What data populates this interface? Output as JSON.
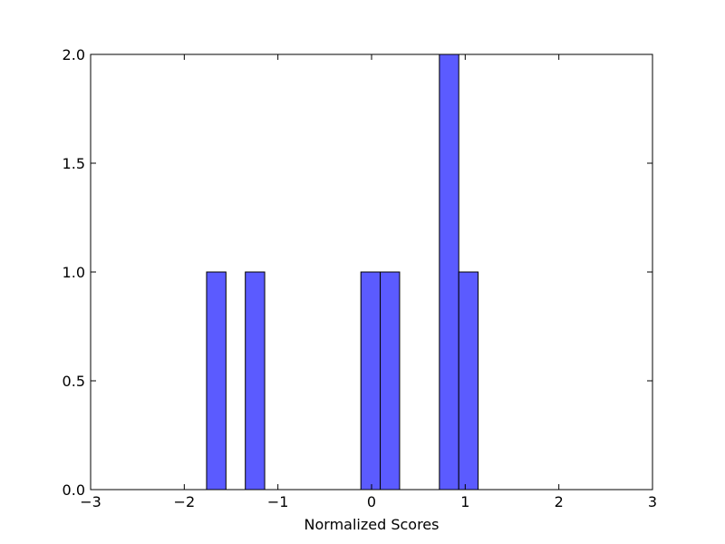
{
  "chart_data": {
    "type": "bar",
    "subtype": "histogram",
    "title": "",
    "xlabel": "Normalized Scores",
    "ylabel": "",
    "xlim": [
      -3,
      3
    ],
    "ylim": [
      0,
      2
    ],
    "bin_width": 0.2068,
    "bins": [
      {
        "x0": -1.7617,
        "x1": -1.5549,
        "count": 1
      },
      {
        "x0": -1.3481,
        "x1": -1.1413,
        "count": 1
      },
      {
        "x0": -0.1141,
        "x1": 0.0927,
        "count": 1
      },
      {
        "x0": 0.0927,
        "x1": 0.2995,
        "count": 1
      },
      {
        "x0": 0.7244,
        "x1": 0.9312,
        "count": 2
      },
      {
        "x0": 0.9312,
        "x1": 1.138,
        "count": 1
      }
    ],
    "x_ticks": [
      -3,
      -2,
      -1,
      0,
      1,
      2,
      3
    ],
    "x_tick_labels": [
      "−3",
      "−2",
      "−1",
      "0",
      "1",
      "2",
      "3"
    ],
    "y_ticks": [
      0,
      0.5,
      1,
      1.5,
      2
    ],
    "y_tick_labels": [
      "0.0",
      "0.5",
      "1.0",
      "1.5",
      "2.0"
    ],
    "bar_color": "#5b5bff",
    "bar_edge_color": "#000000",
    "grid": false,
    "legend": "none"
  }
}
